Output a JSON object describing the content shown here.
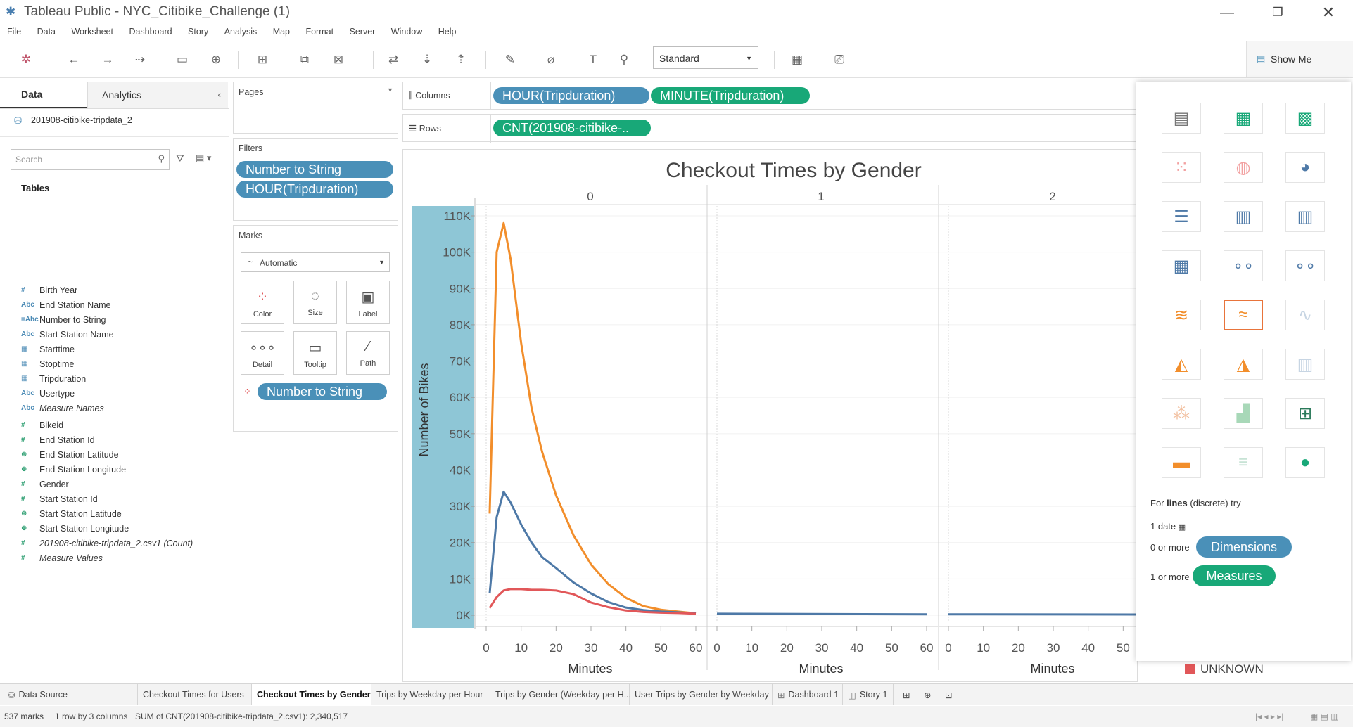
{
  "window": {
    "title": "Tableau Public - NYC_Citibike_Challenge (1)"
  },
  "menu": [
    "File",
    "Data",
    "Worksheet",
    "Dashboard",
    "Story",
    "Analysis",
    "Map",
    "Format",
    "Server",
    "Window",
    "Help"
  ],
  "toolbar": {
    "fit_select": "Standard",
    "show_me_label": "Show Me"
  },
  "data_pane": {
    "tab_data": "Data",
    "tab_analytics": "Analytics",
    "datasource": "201908-citibike-tripdata_2",
    "search_placeholder": "Search",
    "tables_heading": "Tables",
    "dimensions": [
      {
        "icon": "#",
        "name": "Birth Year"
      },
      {
        "icon": "Abc",
        "name": "End Station Name"
      },
      {
        "icon": "=Abc",
        "name": "Number to String"
      },
      {
        "icon": "Abc",
        "name": "Start Station Name"
      },
      {
        "icon": "cal",
        "name": "Starttime"
      },
      {
        "icon": "cal",
        "name": "Stoptime"
      },
      {
        "icon": "cal",
        "name": "Tripduration"
      },
      {
        "icon": "Abc",
        "name": "Usertype"
      },
      {
        "icon": "Abc",
        "name": "Measure Names",
        "italic": true
      }
    ],
    "measures": [
      {
        "icon": "#",
        "name": "Bikeid"
      },
      {
        "icon": "#",
        "name": "End Station Id"
      },
      {
        "icon": "globe",
        "name": "End Station Latitude"
      },
      {
        "icon": "globe",
        "name": "End Station Longitude"
      },
      {
        "icon": "#",
        "name": "Gender"
      },
      {
        "icon": "#",
        "name": "Start Station Id"
      },
      {
        "icon": "globe",
        "name": "Start Station Latitude"
      },
      {
        "icon": "globe",
        "name": "Start Station Longitude"
      },
      {
        "icon": "#",
        "name": "201908-citibike-tripdata_2.csv1 (Count)",
        "italic": true
      },
      {
        "icon": "#",
        "name": "Measure Values",
        "italic": true
      }
    ]
  },
  "pages": {
    "title": "Pages"
  },
  "filters": {
    "title": "Filters",
    "items": [
      "Number to String",
      "HOUR(Tripduration)"
    ]
  },
  "marks": {
    "title": "Marks",
    "type": "Automatic",
    "buttons": [
      "Color",
      "Size",
      "Label",
      "Detail",
      "Tooltip",
      "Path"
    ],
    "color_pill": "Number to String"
  },
  "shelves": {
    "columns_label": "Columns",
    "columns": [
      "HOUR(Tripduration)",
      "MINUTE(Tripduration)"
    ],
    "rows_label": "Rows",
    "rows": [
      "CNT(201908-citibike-.."
    ]
  },
  "chart_data": {
    "type": "line",
    "title": "Checkout Times by Gender",
    "ylabel": "Number of Bikes",
    "xlabel": "Minutes",
    "ylim": [
      0,
      110000
    ],
    "y_ticks": [
      "0K",
      "10K",
      "20K",
      "30K",
      "40K",
      "50K",
      "60K",
      "70K",
      "80K",
      "90K",
      "100K",
      "110K"
    ],
    "x_ticks": [
      "0",
      "10",
      "20",
      "30",
      "40",
      "50",
      "60"
    ],
    "panels": [
      {
        "header": "0",
        "series": [
          {
            "color": "#f28e2b",
            "x": [
              1,
              3,
              5,
              7,
              10,
              13,
              16,
              20,
              25,
              30,
              35,
              40,
              45,
              50,
              55,
              60
            ],
            "y": [
              28000,
              100000,
              108000,
              98000,
              75000,
              57000,
              45000,
              33000,
              22000,
              14000,
              8500,
              4800,
              2500,
              1500,
              1000,
              500
            ]
          },
          {
            "color": "#4e79a7",
            "x": [
              1,
              3,
              5,
              7,
              10,
              13,
              16,
              20,
              25,
              30,
              35,
              40,
              45,
              50,
              55,
              60
            ],
            "y": [
              6000,
              27000,
              34000,
              31000,
              25000,
              20000,
              16000,
              13000,
              9000,
              6000,
              3600,
              2100,
              1400,
              1000,
              800,
              500
            ]
          },
          {
            "color": "#e15759",
            "x": [
              1,
              3,
              5,
              7,
              10,
              13,
              16,
              20,
              25,
              30,
              35,
              40,
              45,
              50,
              55,
              60
            ],
            "y": [
              2000,
              5000,
              6800,
              7200,
              7200,
              7000,
              7000,
              6800,
              5800,
              3500,
              2200,
              1300,
              900,
              700,
              600,
              400
            ]
          }
        ]
      },
      {
        "header": "1",
        "series": [
          {
            "color": "#4e79a7",
            "x": [
              0,
              60
            ],
            "y": [
              400,
              250
            ]
          }
        ]
      },
      {
        "header": "2",
        "series": [
          {
            "color": "#4e79a7",
            "x": [
              0,
              60
            ],
            "y": [
              250,
              200
            ]
          }
        ]
      }
    ],
    "grid": true,
    "legend_visible": "UNKNOWN"
  },
  "legend": {
    "unknown_label": "UNKNOWN",
    "unknown_color": "#e15759"
  },
  "show_me": {
    "hint_prefix": "For ",
    "hint_bold": "lines",
    "hint_suffix": " (discrete) try",
    "req_date": "1 date",
    "req_dim_prefix": "0 or more",
    "req_dim_pill": "Dimensions",
    "req_mea_prefix": "1 or more",
    "req_mea_pill": "Measures"
  },
  "sheet_tabs": [
    {
      "label": "Data Source"
    },
    {
      "label": "Checkout Times for Users"
    },
    {
      "label": "Checkout Times by Gender",
      "active": true
    },
    {
      "label": "Trips by Weekday per Hour"
    },
    {
      "label": "Trips by Gender (Weekday per H..."
    },
    {
      "label": "User Trips by Gender by Weekday"
    },
    {
      "label": "Dashboard 1"
    },
    {
      "label": "Story 1"
    }
  ],
  "status": {
    "marks": "537 marks",
    "shape": "1 row by 3 columns",
    "sum": "SUM of CNT(201908-citibike-tripdata_2.csv1): 2,340,517"
  }
}
